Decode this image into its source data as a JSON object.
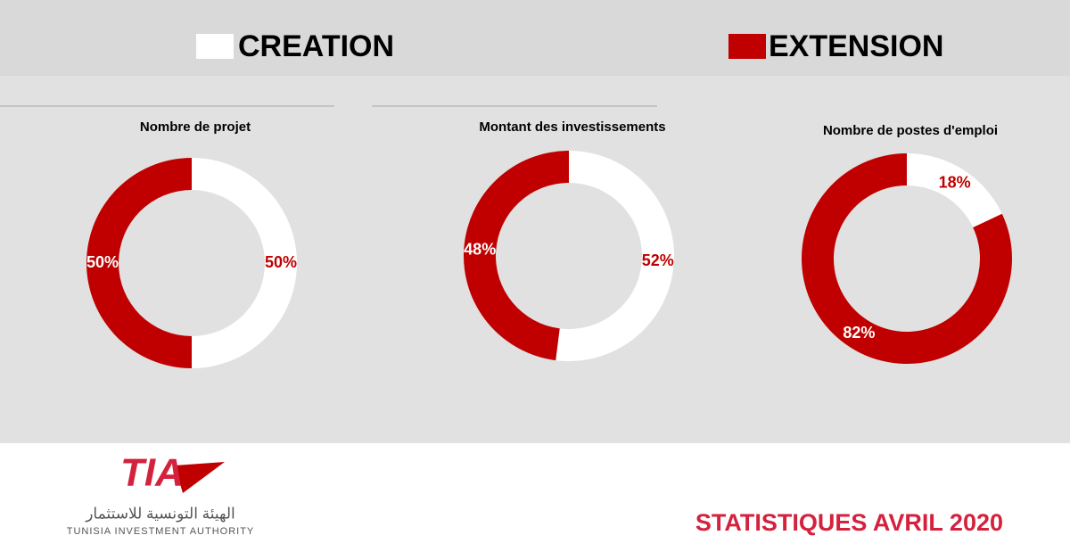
{
  "legend": [
    {
      "name": "CREATION",
      "color": "#ffffff"
    },
    {
      "name": "EXTENSION",
      "color": "#c00000"
    }
  ],
  "chart_data": [
    {
      "type": "pie",
      "donut": true,
      "title": "Nombre de projet",
      "values": [
        50,
        50
      ],
      "value_labels": [
        "50%",
        "50%"
      ]
    },
    {
      "type": "pie",
      "donut": true,
      "title": "Montant des investissements",
      "values": [
        52,
        48
      ],
      "value_labels": [
        "52%",
        "48%"
      ]
    },
    {
      "type": "pie",
      "donut": true,
      "title": "Nombre de postes d'emploi",
      "values": [
        18,
        82
      ],
      "value_labels": [
        "18%",
        "82%"
      ]
    }
  ],
  "footer": {
    "logo": "TIA",
    "arabic_name": "الهيئة التونسية للاستثمار",
    "name": "TUNISIA INVESTMENT AUTHORITY",
    "caption": "STATISTIQUES AVRIL 2020"
  }
}
